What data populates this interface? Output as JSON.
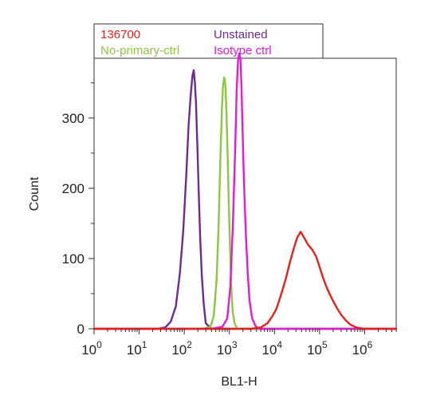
{
  "chart_data": {
    "type": "line",
    "xlabel": "BL1-H",
    "ylabel": "Count",
    "x_scale": "log",
    "xlim": [
      1,
      5000000
    ],
    "ylim": [
      0,
      385
    ],
    "x_ticks": [
      1,
      10,
      100,
      1000,
      10000,
      100000,
      1000000
    ],
    "x_tick_base": "10",
    "x_tick_exponents": [
      "0",
      "1",
      "2",
      "3",
      "4",
      "5",
      "6"
    ],
    "y_ticks": [
      "0",
      "100",
      "200",
      "300"
    ],
    "grid": false,
    "legend": {
      "placement": "top-left",
      "entries": [
        {
          "label": "136700",
          "color": "#e8211c"
        },
        {
          "label": "Unstained",
          "color": "#6a2d91"
        },
        {
          "label": "No-primary-ctrl",
          "color": "#8dc63f"
        },
        {
          "label": "Isotype ctrl",
          "color": "#e619d8"
        }
      ],
      "faded_text": [
        "",
        ""
      ]
    },
    "series": [
      {
        "name": "Unstained",
        "color": "#6a2d91",
        "x": [
          1,
          25,
          38,
          50,
          65,
          80,
          95,
          110,
          125,
          140,
          152,
          162,
          172,
          182,
          195,
          210,
          225,
          245,
          270,
          300,
          400,
          10000,
          100000,
          5000000
        ],
        "y": [
          0,
          0,
          2,
          10,
          32,
          80,
          140,
          215,
          290,
          335,
          360,
          368,
          350,
          320,
          260,
          190,
          130,
          75,
          35,
          8,
          0,
          0,
          0,
          0
        ]
      },
      {
        "name": "No-primary-ctrl",
        "color": "#8dc63f",
        "x": [
          1,
          250,
          380,
          450,
          520,
          580,
          630,
          680,
          720,
          770,
          820,
          870,
          920,
          980,
          1040,
          1100,
          1180,
          1300,
          1500,
          5000000
        ],
        "y": [
          0,
          0,
          3,
          18,
          70,
          150,
          240,
          310,
          345,
          358,
          345,
          300,
          240,
          170,
          110,
          60,
          25,
          8,
          0,
          0
        ]
      },
      {
        "name": "Isotype ctrl",
        "color": "#e619d8",
        "x": [
          1,
          400,
          700,
          900,
          1050,
          1200,
          1350,
          1450,
          1550,
          1650,
          1750,
          1850,
          1950,
          2100,
          2300,
          2550,
          2800,
          3200,
          3800,
          4500,
          5000000
        ],
        "y": [
          0,
          0,
          3,
          15,
          60,
          150,
          260,
          340,
          380,
          392,
          385,
          350,
          290,
          210,
          140,
          80,
          40,
          15,
          4,
          0,
          0
        ]
      },
      {
        "name": "136700",
        "color": "#e8211c",
        "x": [
          1,
          3000,
          5000,
          7000,
          9000,
          11000,
          13000,
          15000,
          18000,
          22000,
          27000,
          32000,
          38000,
          45000,
          55000,
          70000,
          85000,
          100000,
          120000,
          150000,
          190000,
          240000,
          300000,
          380000,
          480000,
          600000,
          750000,
          1000000,
          1500000,
          5000000
        ],
        "y": [
          0,
          0,
          2,
          8,
          18,
          28,
          42,
          55,
          72,
          95,
          115,
          130,
          138,
          130,
          120,
          112,
          102,
          88,
          72,
          56,
          42,
          30,
          20,
          12,
          6,
          3,
          1,
          0,
          0,
          0
        ]
      }
    ]
  }
}
